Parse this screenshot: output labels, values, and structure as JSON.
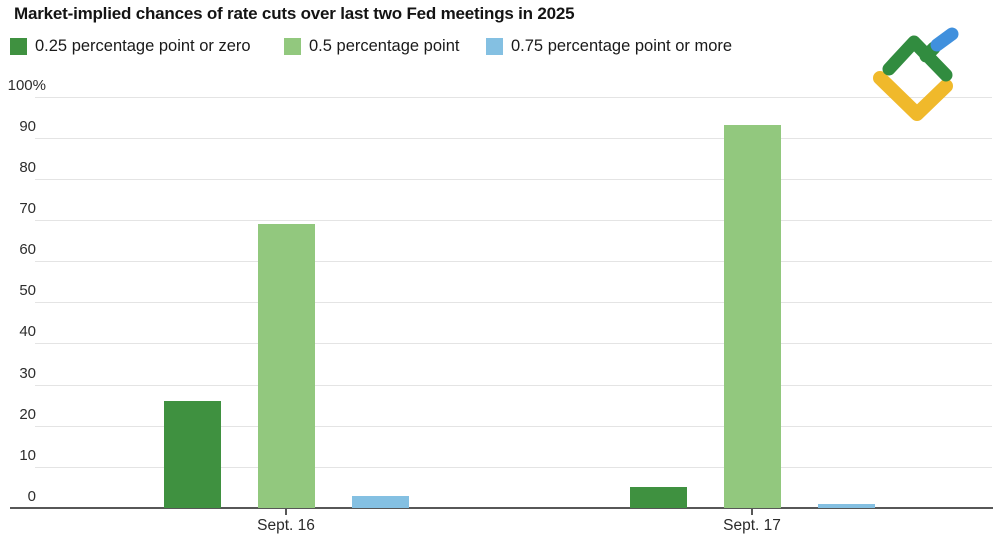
{
  "title": "Market-implied chances of rate cuts over last two Fed meetings in 2025",
  "chart_data": {
    "type": "bar",
    "categories": [
      "Sept. 16",
      "Sept. 17"
    ],
    "series": [
      {
        "name": "0.25 percentage point or zero",
        "color": "#3f9140",
        "values": [
          26,
          5
        ]
      },
      {
        "name": "0.5 percentage point",
        "color": "#92c87e",
        "values": [
          69,
          93
        ]
      },
      {
        "name": "0.75 percentage point or more",
        "color": "#84c0e2",
        "values": [
          3,
          1
        ]
      }
    ],
    "xlabel": "",
    "ylabel": "",
    "ylim": [
      0,
      100
    ],
    "yticks": [
      0,
      10,
      20,
      30,
      40,
      50,
      60,
      70,
      80,
      90,
      100
    ],
    "ytick_labels": [
      "0",
      "10",
      "20",
      "30",
      "40",
      "50",
      "60",
      "70",
      "80",
      "90",
      "100%"
    ],
    "grid": true,
    "legend_position": "top-left",
    "axis_color": "#575757",
    "gridline_color": "#e4e4e4"
  },
  "logo": {
    "label": "litefinance-logo",
    "green": "#318c3f",
    "blue": "#4090dd",
    "yellow": "#f0b92b"
  }
}
